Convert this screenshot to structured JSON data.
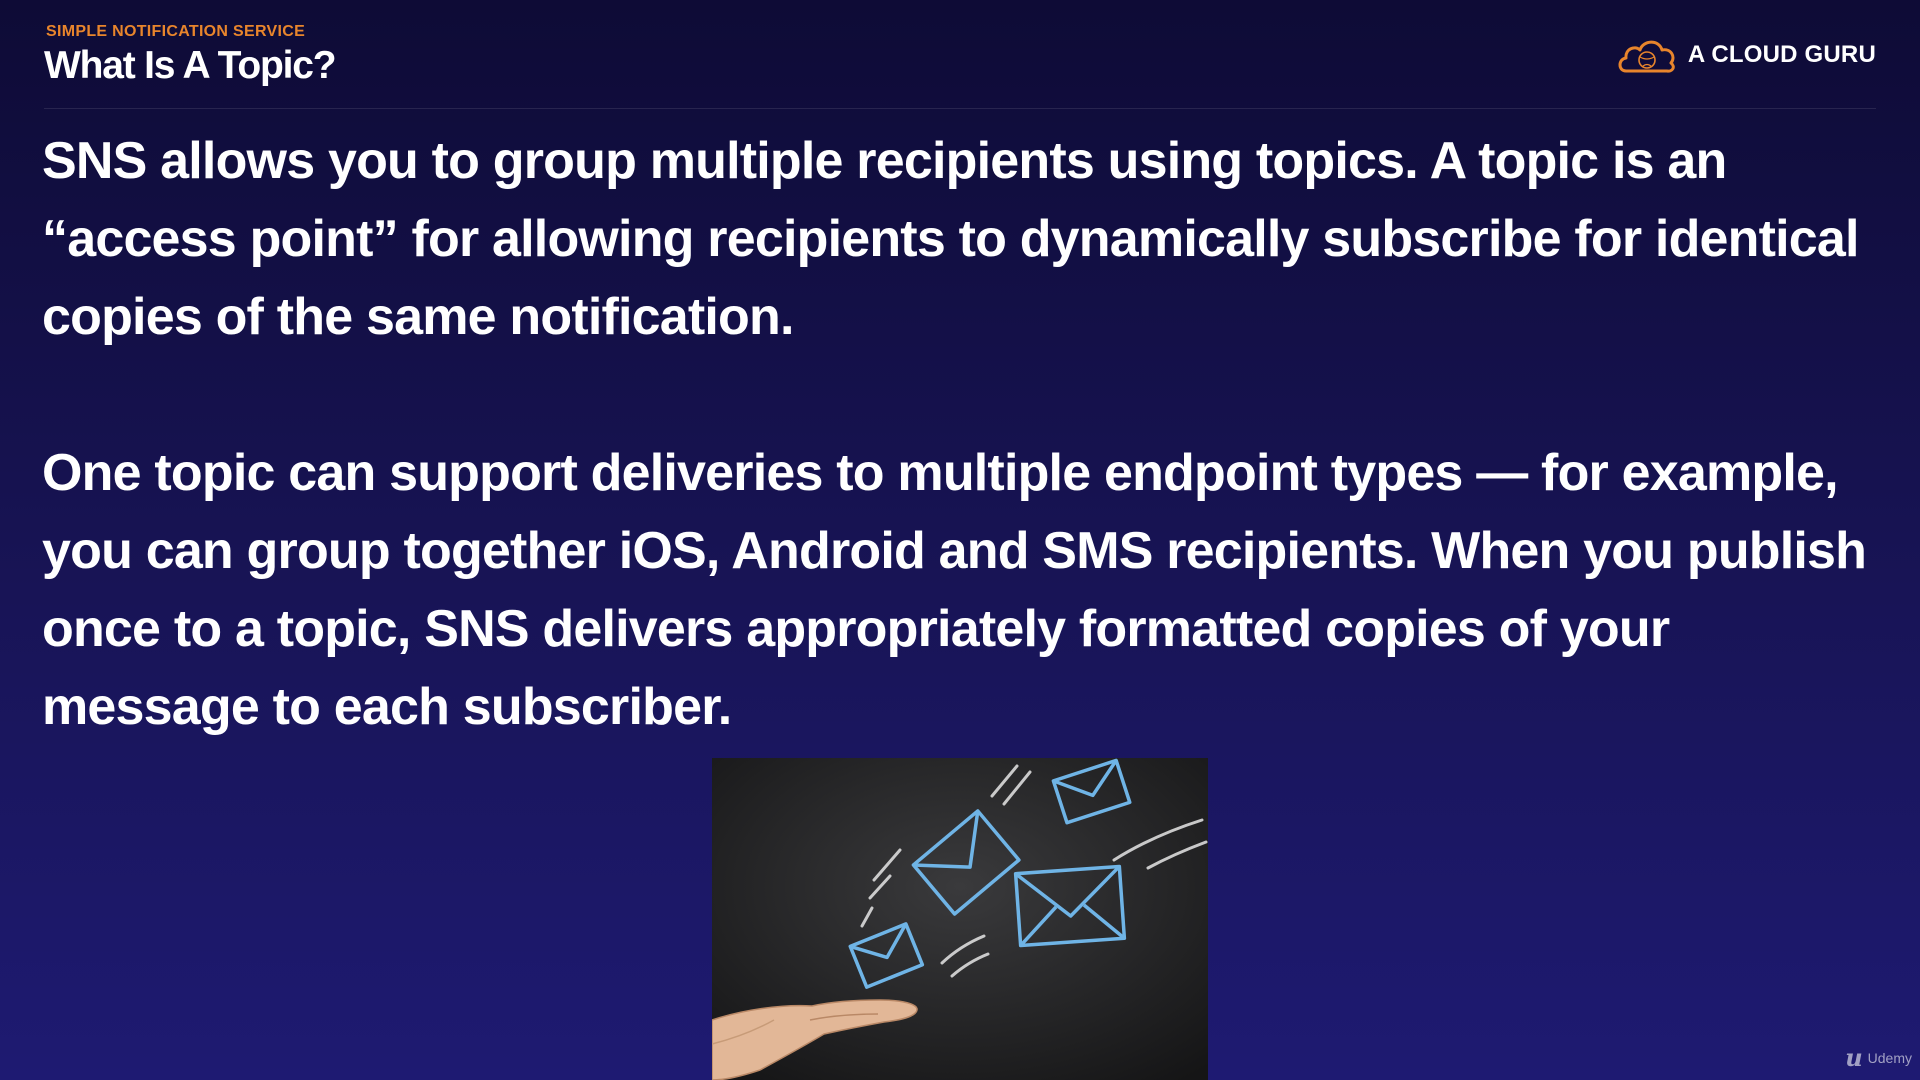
{
  "header": {
    "section_label": "SIMPLE NOTIFICATION SERVICE",
    "title": "What Is A Topic?"
  },
  "brand": {
    "icon": "cloud-logo-icon",
    "name": "A CLOUD GURU",
    "accent_color": "#e8852c"
  },
  "body": {
    "paragraph_1": "SNS allows you to group multiple recipients using topics. A topic is an “access point” for allowing recipients to dynamically subscribe for identical copies of the same notification.",
    "paragraph_2": "One topic can support deliveries to multiple endpoint types — for example, you can group together iOS, Android and SMS recipients. When you publish once to a topic, SNS delivers appropriately formatted copies of your message to each subscriber."
  },
  "illustration": {
    "icon": "envelopes-from-hand-image"
  },
  "watermark": {
    "icon": "udemy-logo-icon",
    "text": "Udemy"
  },
  "colors": {
    "background_top": "#0e0b36",
    "background_bottom": "#1e1a72",
    "envelope_stroke": "#6fb4e6"
  }
}
